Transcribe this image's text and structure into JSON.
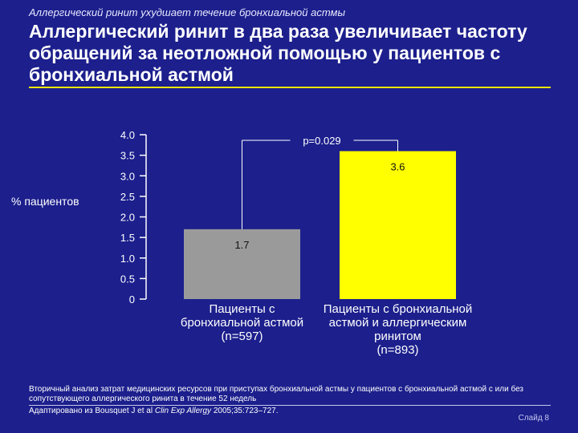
{
  "header": {
    "subtitle": "Аллергический ринит ухудшает течение бронхиальной астмы",
    "title": "Аллергический ринит в два раза увеличивает частоту обращений за неотложной помощью у пациентов с бронхиальной астмой"
  },
  "chart_data": {
    "type": "bar",
    "ylabel": "% пациентов",
    "ylim": [
      0,
      4.0
    ],
    "y_ticks": [
      {
        "value": 0,
        "label": "0"
      },
      {
        "value": 0.5,
        "label": "0.5"
      },
      {
        "value": 1.0,
        "label": "1.0"
      },
      {
        "value": 1.5,
        "label": "1.5"
      },
      {
        "value": 2.0,
        "label": "2.0"
      },
      {
        "value": 2.5,
        "label": "2.5"
      },
      {
        "value": 3.0,
        "label": "3.0"
      },
      {
        "value": 3.5,
        "label": "3.5"
      },
      {
        "value": 4.0,
        "label": "4.0"
      }
    ],
    "bars": [
      {
        "label_lines": [
          "Пациенты с",
          "бронхиальной астмой",
          "(n=597)"
        ],
        "value": 1.7,
        "value_label": "1.7",
        "color": "#9a9a9a"
      },
      {
        "label_lines": [
          "Пациенты с бронхиальной",
          "астмой и аллергическим",
          "ринитом",
          "(n=893)"
        ],
        "value": 3.6,
        "value_label": "3.6",
        "color": "#ffff00"
      }
    ],
    "annotation": "p=0.029",
    "grid": false
  },
  "footer": {
    "note": "Вторичный анализ затрат медицинских ресурсов при приступах бронхиальной астмы у пациентов с бронхиальной астмой с или без сопутствующего аллергического ринита в течение 52 недель",
    "source_prefix": "Адаптировано из Bousquet J et al ",
    "source_journal": "Clin Exp Allergy",
    "source_suffix": " 2005;35:723–727.",
    "slide": "Слайд 8"
  }
}
